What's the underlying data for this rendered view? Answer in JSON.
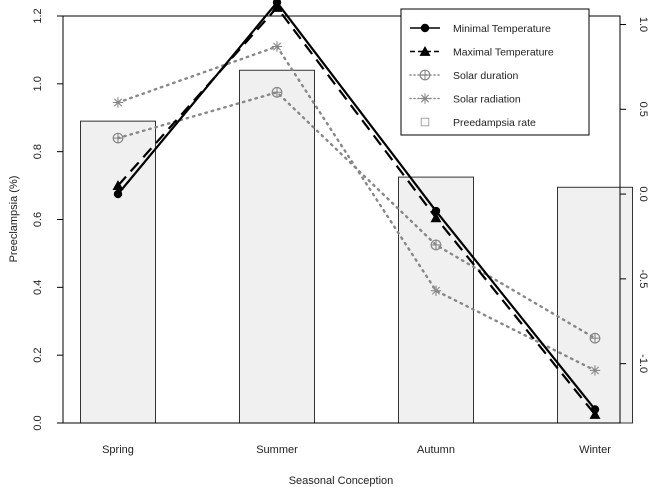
{
  "chart_data": {
    "type": "bar",
    "xlabel": "Seasonal Conception",
    "ylabel": "Preeclampsia (%)",
    "categories": [
      "Spring",
      "Summer",
      "Autumn",
      "Winter"
    ],
    "ylim": [
      0,
      1.2
    ],
    "yticks": [
      "0.0",
      "0.2",
      "0.4",
      "0.6",
      "0.8",
      "1.0",
      "1.2"
    ],
    "y2lim": [
      -1.35,
      1.05
    ],
    "y2ticks": [
      "-1.0",
      "-0.5",
      "0.0",
      "0.5",
      "1.0"
    ],
    "bars": {
      "name": "Preedampsia rate",
      "values": [
        0.89,
        1.04,
        0.725,
        0.695
      ],
      "color": "#f0f0f0"
    },
    "series": [
      {
        "name": "Minimal Temperature",
        "axis": "right",
        "values": [
          0.0,
          1.13,
          -0.1,
          -1.27
        ],
        "line": "solid",
        "marker": "circle",
        "color": "#000000"
      },
      {
        "name": "Maximal Temperature",
        "axis": "right",
        "values": [
          0.05,
          1.1,
          -0.14,
          -1.3
        ],
        "line": "dashed",
        "marker": "triangle",
        "color": "#000000"
      },
      {
        "name": "Solar duration",
        "axis": "right",
        "values": [
          0.33,
          0.6,
          -0.3,
          -0.85
        ],
        "line": "dotted",
        "marker": "circle-plus",
        "color": "#888888"
      },
      {
        "name": "Solar radiation",
        "axis": "right",
        "values": [
          0.54,
          0.87,
          -0.57,
          -1.04
        ],
        "line": "dotted",
        "marker": "asterisk",
        "color": "#888888"
      }
    ],
    "legend_position": "top-right",
    "grid": false
  }
}
